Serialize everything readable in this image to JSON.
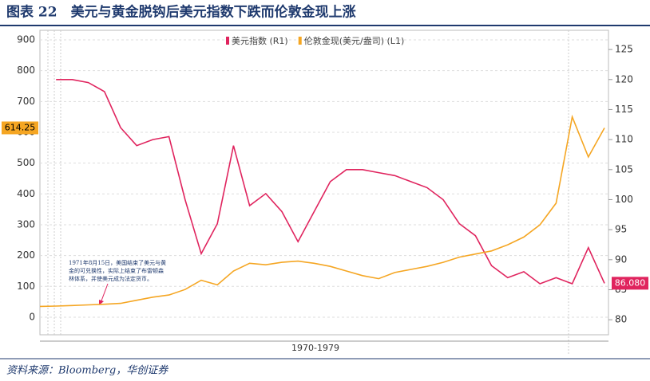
{
  "chart_data": {
    "type": "line",
    "title": "图表 22　美元与黄金脱钩后美元指数下跌而伦敦金现上涨",
    "source": "资料来源：Bloomberg，华创证券",
    "xlabel": "1970-1979",
    "annotation": [
      "1971年8月15日，美国结束了美元与黄",
      "金的可兑换性，实际上结束了布雷顿森",
      "林体系，并使美元成为法定货币。"
    ],
    "categories": [
      null,
      null,
      null,
      null,
      null,
      null,
      null,
      null,
      null,
      null,
      null,
      null,
      null,
      null,
      null,
      null,
      null,
      null,
      null,
      null,
      null,
      null,
      null,
      null,
      null,
      null,
      null,
      null,
      null,
      null,
      null,
      null,
      null,
      null,
      null,
      null
    ],
    "series": [
      {
        "name": "美元指数 (R1)",
        "color": "#e0245e",
        "axis": "y2",
        "values": [
          null,
          120,
          120,
          119.5,
          118,
          112,
          109,
          110,
          110.5,
          100,
          91,
          96,
          109,
          99,
          101,
          98,
          93,
          98,
          103,
          105,
          105,
          104.5,
          104,
          103,
          102,
          100,
          96,
          94,
          89,
          87,
          88,
          86,
          87,
          86,
          92,
          86.08
        ],
        "value_labels": [
          null,
          null,
          null,
          null,
          null,
          null,
          null,
          null,
          null,
          null,
          null,
          null,
          null,
          null,
          null,
          null,
          null,
          null,
          null,
          null,
          null,
          null,
          null,
          null,
          null,
          null,
          null,
          null,
          null,
          null,
          null,
          null,
          null,
          null,
          null,
          "86.080"
        ]
      },
      {
        "name": "伦敦金现(美元/盎司) (L1)",
        "color": "#f5a623",
        "values": [
          35,
          36,
          38,
          40,
          42,
          45,
          55,
          65,
          72,
          90,
          120,
          105,
          150,
          175,
          170,
          178,
          182,
          175,
          165,
          150,
          135,
          125,
          145,
          155,
          165,
          178,
          195,
          205,
          215,
          235,
          260,
          300,
          370,
          650,
          520,
          614.25
        ],
        "value_labels": [
          null,
          null,
          null,
          null,
          null,
          null,
          null,
          null,
          null,
          null,
          null,
          null,
          null,
          null,
          null,
          null,
          null,
          null,
          null,
          null,
          null,
          null,
          null,
          null,
          null,
          null,
          null,
          null,
          null,
          null,
          null,
          null,
          null,
          null,
          null,
          "614.25"
        ]
      }
    ],
    "ylim": [
      -57,
      931
    ],
    "yticks": [
      0,
      100,
      200,
      300,
      400,
      500,
      600,
      700,
      800,
      900
    ],
    "y2lim": [
      77.5,
      128.2
    ],
    "y2ticks": [
      80,
      85,
      90,
      95,
      100,
      105,
      110,
      115,
      120,
      125
    ],
    "grid": true
  }
}
